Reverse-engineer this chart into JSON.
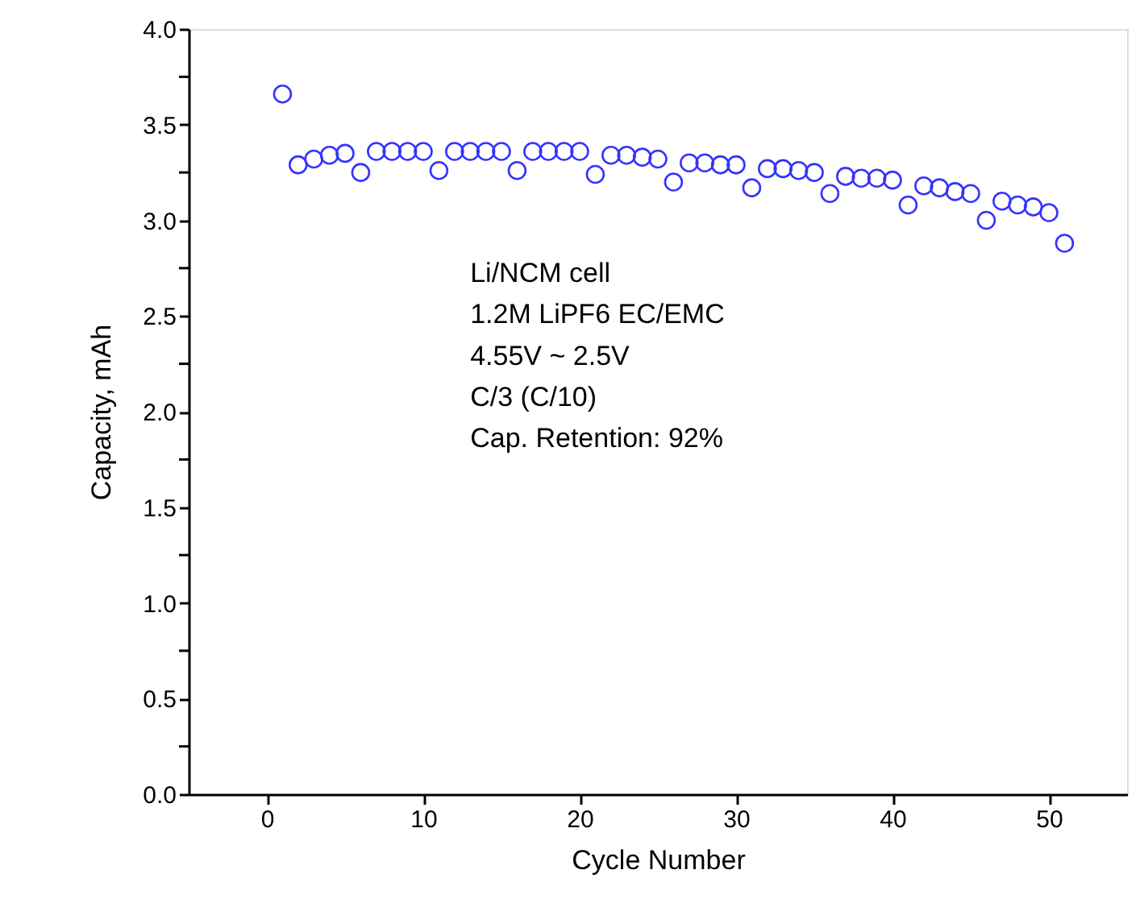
{
  "chart_data": {
    "type": "scatter",
    "xlabel": "Cycle Number",
    "ylabel": "Capacity, mAh",
    "x": [
      1,
      2,
      3,
      4,
      5,
      6,
      7,
      8,
      9,
      10,
      11,
      12,
      13,
      14,
      15,
      16,
      17,
      18,
      19,
      20,
      21,
      22,
      23,
      24,
      25,
      26,
      27,
      28,
      29,
      30,
      31,
      32,
      33,
      34,
      35,
      36,
      37,
      38,
      39,
      40,
      41,
      42,
      43,
      44,
      45,
      46,
      47,
      48,
      49,
      50,
      51
    ],
    "series": [
      {
        "color": "#3333ff",
        "values": [
          3.66,
          3.29,
          3.32,
          3.34,
          3.35,
          3.25,
          3.36,
          3.36,
          3.36,
          3.36,
          3.26,
          3.36,
          3.36,
          3.36,
          3.36,
          3.26,
          3.36,
          3.36,
          3.36,
          3.36,
          3.24,
          3.34,
          3.34,
          3.33,
          3.32,
          3.2,
          3.3,
          3.3,
          3.29,
          3.29,
          3.17,
          3.27,
          3.27,
          3.26,
          3.25,
          3.14,
          3.23,
          3.22,
          3.22,
          3.21,
          3.08,
          3.18,
          3.17,
          3.15,
          3.14,
          3.0,
          3.1,
          3.08,
          3.07,
          3.04,
          2.88
        ]
      }
    ],
    "marker": "circle",
    "grid": false,
    "xlim": [
      -5,
      55
    ],
    "xticks": [
      0,
      10,
      20,
      30,
      40,
      50
    ],
    "ylim": [
      0,
      4.0
    ],
    "yticks": [
      {
        "value": 0,
        "label": "0.0"
      },
      {
        "value": 0.25,
        "label": null
      },
      {
        "value": 0.5,
        "label": "0.5"
      },
      {
        "value": 0.75,
        "label": null
      },
      {
        "value": 1,
        "label": "1.0"
      },
      {
        "value": 1.25,
        "label": null
      },
      {
        "value": 1.5,
        "label": "1.5"
      },
      {
        "value": 1.75,
        "label": null
      },
      {
        "value": 2,
        "label": "2.0"
      },
      {
        "value": 2.25,
        "label": null
      },
      {
        "value": 2.5,
        "label": "2.5"
      },
      {
        "value": 2.75,
        "label": null
      },
      {
        "value": 3,
        "label": "3.0"
      },
      {
        "value": 3.25,
        "label": null
      },
      {
        "value": 3.5,
        "label": "3.5"
      },
      {
        "value": 3.75,
        "label": null
      },
      {
        "value": 4,
        "label": "4.0"
      }
    ],
    "annotations": [
      "Li/NCM cell",
      "1.2M LiPF6 EC/EMC",
      "4.55V ~ 2.5V",
      "C/3 (C/10)",
      "Cap. Retention: 92%"
    ]
  }
}
